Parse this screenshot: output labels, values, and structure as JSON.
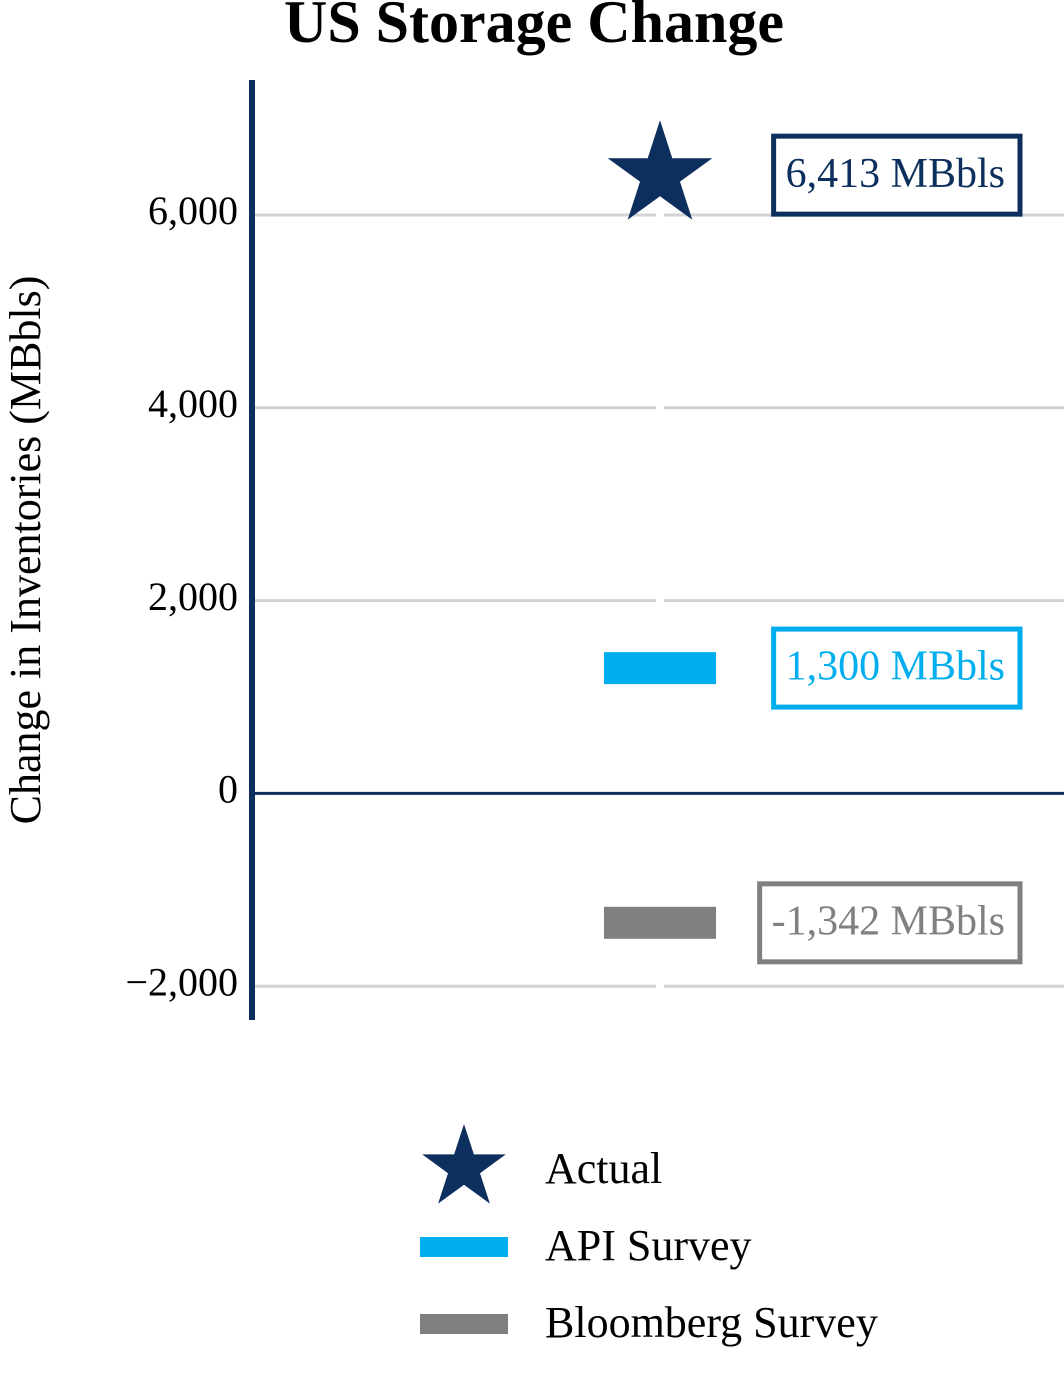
{
  "chart_data": {
    "type": "marker",
    "title": "US Storage Change",
    "y_label": "Change in Inventories (MBbls)",
    "ylim": [
      -2350,
      7400
    ],
    "yticks": [
      {
        "value": 6000,
        "label": "6,000"
      },
      {
        "value": 4000,
        "label": "4,000"
      },
      {
        "value": 2000,
        "label": "2,000"
      },
      0,
      {
        "value": -2000,
        "label": "−2,000"
      }
    ],
    "grid": true,
    "legend": "bottom",
    "series": [
      {
        "name": "Actual",
        "color": "#0d2f5e",
        "marker": "star",
        "values": [
          6413
        ],
        "value_labels": [
          "6,413 MBbls"
        ]
      },
      {
        "name": "API Survey",
        "color": "#00aeef",
        "marker": "bar",
        "values": [
          1300
        ],
        "value_labels": [
          "1,300 MBbls"
        ]
      },
      {
        "name": "Bloomberg Survey",
        "color": "#808080",
        "marker": "bar",
        "values": [
          -1342
        ],
        "value_labels": [
          "-1,342 MBbls"
        ]
      }
    ]
  }
}
